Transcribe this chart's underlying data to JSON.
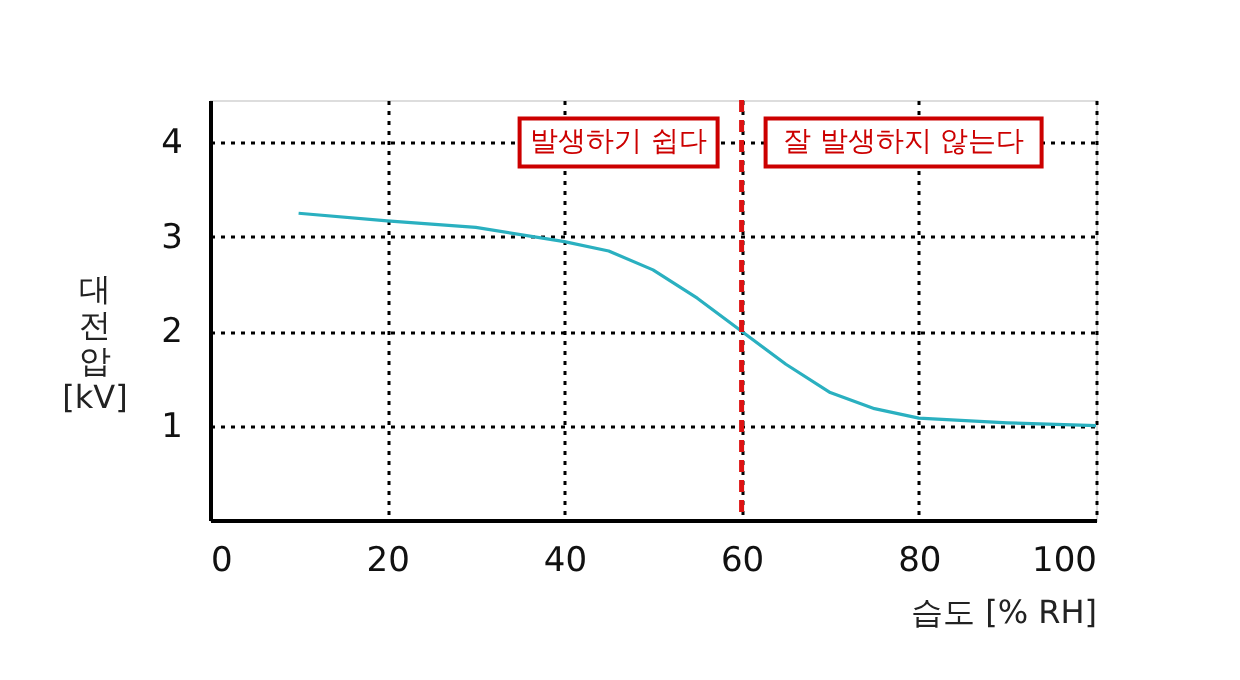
{
  "chart_data": {
    "type": "line",
    "xlabel": "습도 [% RH]",
    "ylabel": "대전압 [kV]",
    "series": [
      {
        "color": "#2ab0c0",
        "x": [
          10,
          20,
          30,
          40,
          45,
          50,
          55,
          60,
          65,
          70,
          75,
          80,
          90,
          100
        ],
        "values": [
          3.25,
          3.17,
          3.1,
          2.95,
          2.85,
          2.65,
          2.35,
          2.0,
          1.65,
          1.35,
          1.18,
          1.08,
          1.03,
          1.0
        ]
      }
    ],
    "xlim": [
      0,
      100
    ],
    "xticks": [
      0,
      20,
      40,
      60,
      80,
      100
    ],
    "ylim": [
      0,
      4.45
    ],
    "yticks": [
      1,
      2,
      3,
      4
    ],
    "grid": true,
    "marker": "none",
    "line_style": "solid",
    "ref_lines": [
      {
        "axis": "x",
        "value": 60,
        "color": "#dd1111",
        "line_style": "dashed"
      }
    ],
    "annotations": [
      "발생하기 쉽다",
      "잘 발생하지 않는다"
    ]
  }
}
